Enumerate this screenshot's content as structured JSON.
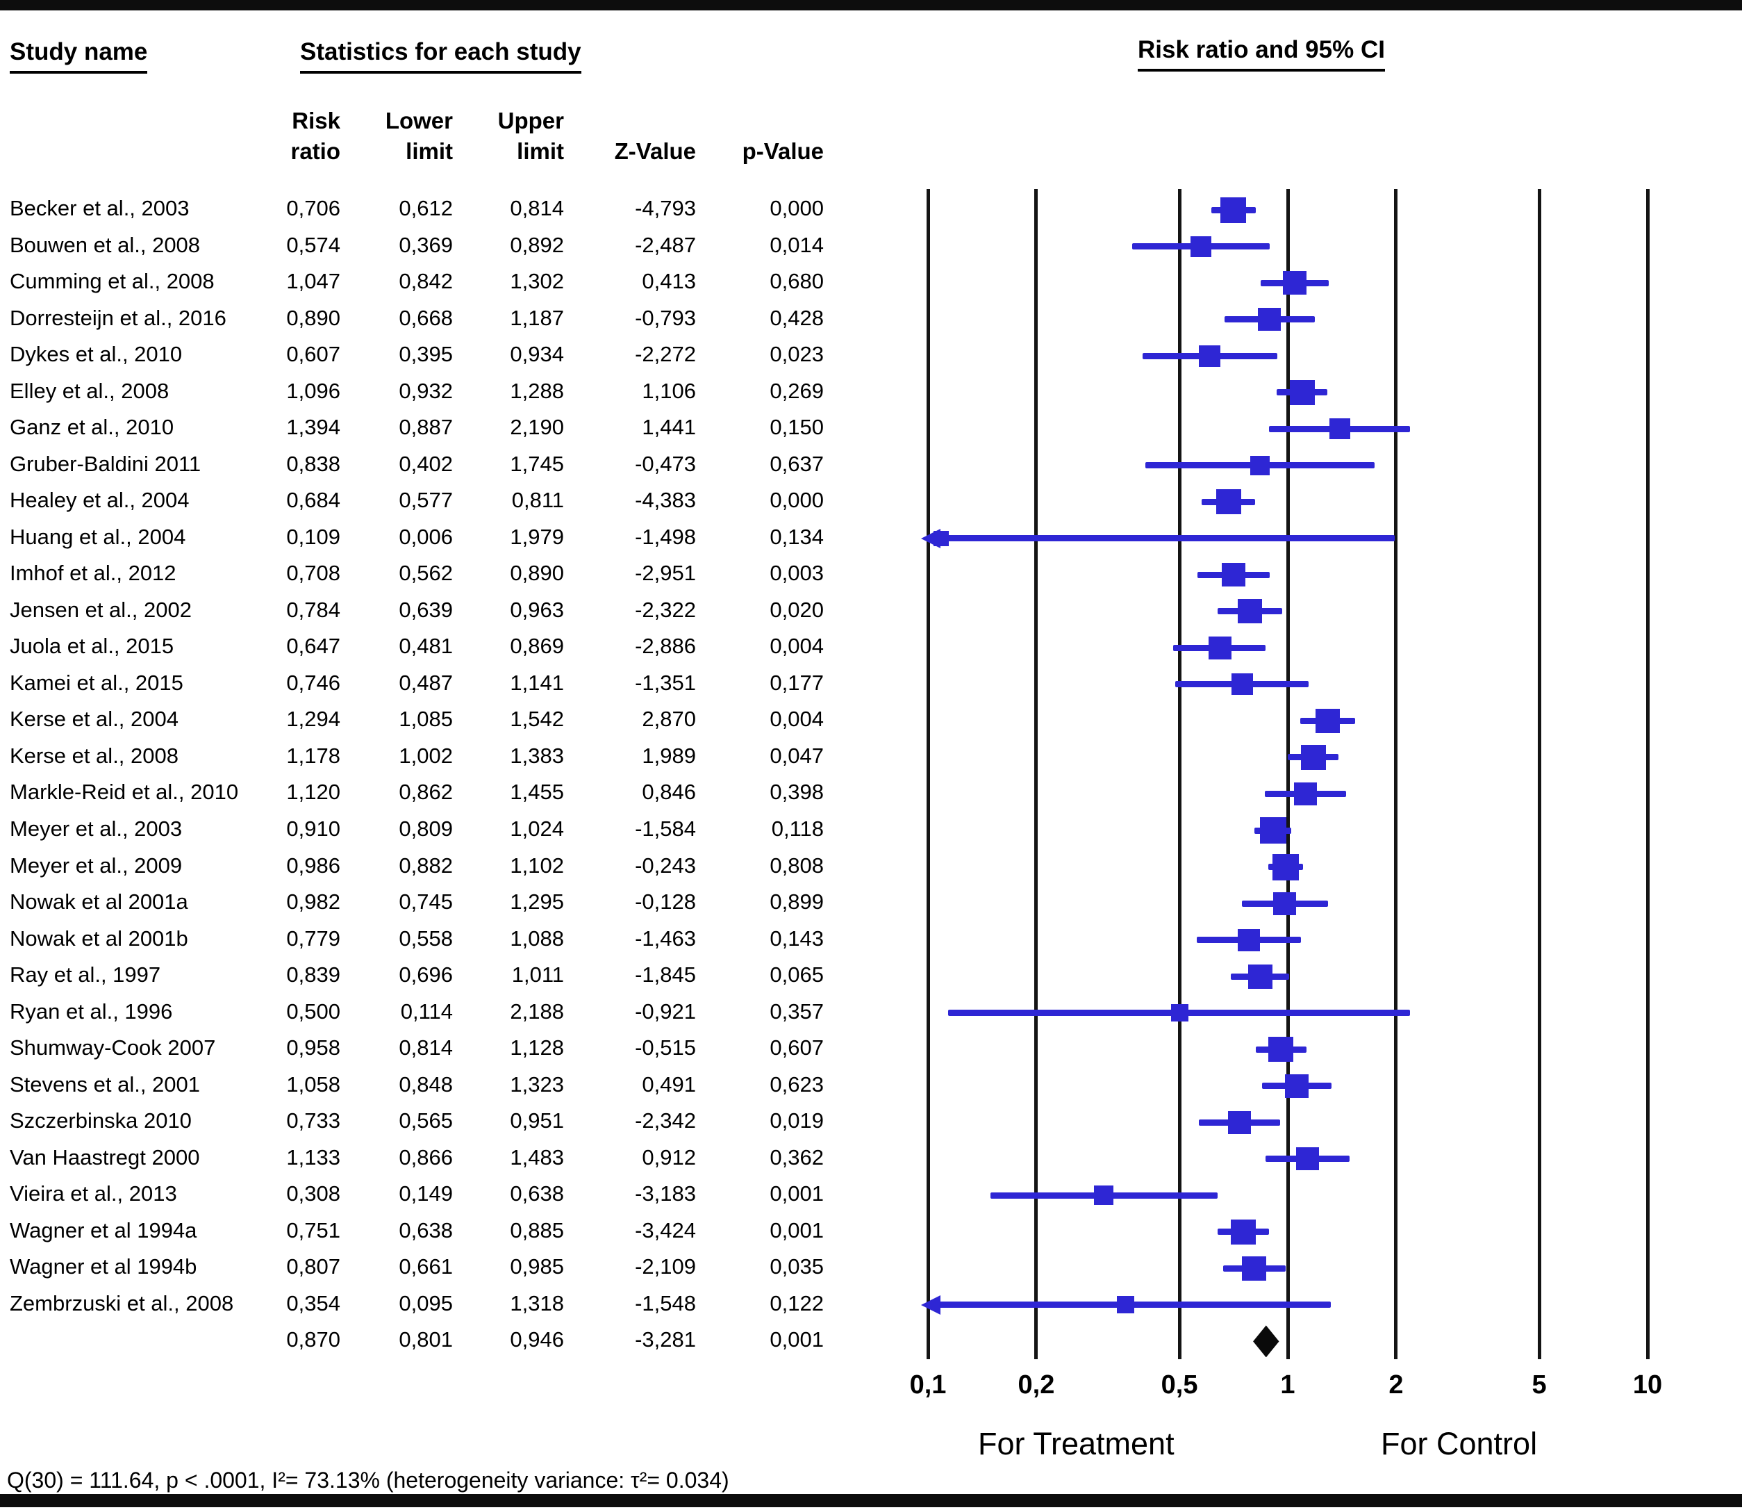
{
  "header": {
    "study_col": "Study name",
    "stats_col": "Statistics for each study",
    "plot_col": "Risk ratio and 95% CI",
    "sub_cols": [
      {
        "line1": "Risk",
        "line2": "ratio"
      },
      {
        "line1": "Lower",
        "line2": "limit"
      },
      {
        "line1": "Upper",
        "line2": "limit"
      },
      {
        "line1": "",
        "line2": "Z-Value"
      },
      {
        "line1": "",
        "line2": "p-Value"
      }
    ]
  },
  "chart_data": {
    "type": "forest",
    "x_scale": "log10",
    "xlim": [
      0.1,
      10
    ],
    "x_ticks": [
      0.1,
      0.2,
      0.5,
      1,
      2,
      5,
      10
    ],
    "x_tick_labels": [
      "0,1",
      "0,2",
      "0,5",
      "1",
      "2",
      "5",
      "10"
    ],
    "axis_left_label": "For Treatment",
    "axis_right_label": "For Control",
    "marker_color": "#2e26d4",
    "summary_color": "#0a0a0a",
    "grid_color": "#141414",
    "studies": [
      {
        "name": "Becker et al., 2003",
        "rr": 0.706,
        "ll": 0.612,
        "ul": 0.814,
        "z": -4.793,
        "p": 0.0
      },
      {
        "name": "Bouwen et al., 2008",
        "rr": 0.574,
        "ll": 0.369,
        "ul": 0.892,
        "z": -2.487,
        "p": 0.014
      },
      {
        "name": "Cumming et al., 2008",
        "rr": 1.047,
        "ll": 0.842,
        "ul": 1.302,
        "z": 0.413,
        "p": 0.68
      },
      {
        "name": "Dorresteijn et al., 2016",
        "rr": 0.89,
        "ll": 0.668,
        "ul": 1.187,
        "z": -0.793,
        "p": 0.428
      },
      {
        "name": "Dykes et al., 2010",
        "rr": 0.607,
        "ll": 0.395,
        "ul": 0.934,
        "z": -2.272,
        "p": 0.023
      },
      {
        "name": "Elley et al., 2008",
        "rr": 1.096,
        "ll": 0.932,
        "ul": 1.288,
        "z": 1.106,
        "p": 0.269
      },
      {
        "name": "Ganz et al., 2010",
        "rr": 1.394,
        "ll": 0.887,
        "ul": 2.19,
        "z": 1.441,
        "p": 0.15
      },
      {
        "name": "Gruber-Baldini 2011",
        "rr": 0.838,
        "ll": 0.402,
        "ul": 1.745,
        "z": -0.473,
        "p": 0.637
      },
      {
        "name": "Healey et al., 2004",
        "rr": 0.684,
        "ll": 0.577,
        "ul": 0.811,
        "z": -4.383,
        "p": 0.0
      },
      {
        "name": "Huang et al., 2004",
        "rr": 0.109,
        "ll": 0.006,
        "ul": 1.979,
        "z": -1.498,
        "p": 0.134
      },
      {
        "name": "Imhof et al., 2012",
        "rr": 0.708,
        "ll": 0.562,
        "ul": 0.89,
        "z": -2.951,
        "p": 0.003
      },
      {
        "name": "Jensen et al., 2002",
        "rr": 0.784,
        "ll": 0.639,
        "ul": 0.963,
        "z": -2.322,
        "p": 0.02
      },
      {
        "name": "Juola et al., 2015",
        "rr": 0.647,
        "ll": 0.481,
        "ul": 0.869,
        "z": -2.886,
        "p": 0.004
      },
      {
        "name": "Kamei et al., 2015",
        "rr": 0.746,
        "ll": 0.487,
        "ul": 1.141,
        "z": -1.351,
        "p": 0.177
      },
      {
        "name": "Kerse et al., 2004",
        "rr": 1.294,
        "ll": 1.085,
        "ul": 1.542,
        "z": 2.87,
        "p": 0.004
      },
      {
        "name": "Kerse et al., 2008",
        "rr": 1.178,
        "ll": 1.002,
        "ul": 1.383,
        "z": 1.989,
        "p": 0.047
      },
      {
        "name": "Markle-Reid et al., 2010",
        "rr": 1.12,
        "ll": 0.862,
        "ul": 1.455,
        "z": 0.846,
        "p": 0.398
      },
      {
        "name": "Meyer et al., 2003",
        "rr": 0.91,
        "ll": 0.809,
        "ul": 1.024,
        "z": -1.584,
        "p": 0.118
      },
      {
        "name": "Meyer et al., 2009",
        "rr": 0.986,
        "ll": 0.882,
        "ul": 1.102,
        "z": -0.243,
        "p": 0.808
      },
      {
        "name": "Nowak et al 2001a",
        "rr": 0.982,
        "ll": 0.745,
        "ul": 1.295,
        "z": -0.128,
        "p": 0.899
      },
      {
        "name": "Nowak et al 2001b",
        "rr": 0.779,
        "ll": 0.558,
        "ul": 1.088,
        "z": -1.463,
        "p": 0.143
      },
      {
        "name": "Ray et al., 1997",
        "rr": 0.839,
        "ll": 0.696,
        "ul": 1.011,
        "z": -1.845,
        "p": 0.065
      },
      {
        "name": "Ryan et al., 1996",
        "rr": 0.5,
        "ll": 0.114,
        "ul": 2.188,
        "z": -0.921,
        "p": 0.357
      },
      {
        "name": "Shumway-Cook 2007",
        "rr": 0.958,
        "ll": 0.814,
        "ul": 1.128,
        "z": -0.515,
        "p": 0.607
      },
      {
        "name": "Stevens et al., 2001",
        "rr": 1.058,
        "ll": 0.848,
        "ul": 1.323,
        "z": 0.491,
        "p": 0.623
      },
      {
        "name": "Szczerbinska 2010",
        "rr": 0.733,
        "ll": 0.565,
        "ul": 0.951,
        "z": -2.342,
        "p": 0.019
      },
      {
        "name": "Van Haastregt 2000",
        "rr": 1.133,
        "ll": 0.866,
        "ul": 1.483,
        "z": 0.912,
        "p": 0.362
      },
      {
        "name": "Vieira et al., 2013",
        "rr": 0.308,
        "ll": 0.149,
        "ul": 0.638,
        "z": -3.183,
        "p": 0.001
      },
      {
        "name": "Wagner et al 1994a",
        "rr": 0.751,
        "ll": 0.638,
        "ul": 0.885,
        "z": -3.424,
        "p": 0.001
      },
      {
        "name": "Wagner et al 1994b",
        "rr": 0.807,
        "ll": 0.661,
        "ul": 0.985,
        "z": -2.109,
        "p": 0.035
      },
      {
        "name": "Zembrzuski et al., 2008",
        "rr": 0.354,
        "ll": 0.095,
        "ul": 1.318,
        "z": -1.548,
        "p": 0.122
      }
    ],
    "summary": {
      "name": "",
      "rr": 0.87,
      "ll": 0.801,
      "ul": 0.946,
      "z": -3.281,
      "p": 0.001
    }
  },
  "footer": {
    "heterogeneity": "Q(30) = 111.64, p < .0001, I²= 73.13% (heterogeneity variance: τ²= 0.034)"
  }
}
